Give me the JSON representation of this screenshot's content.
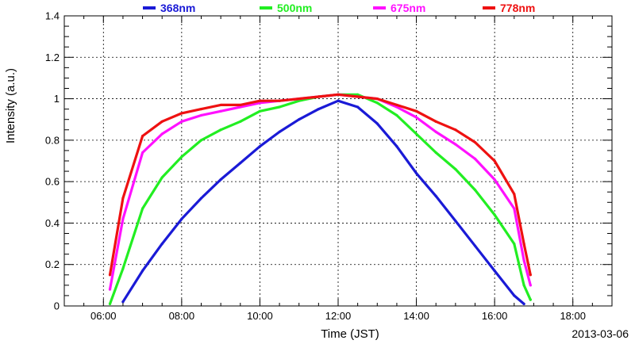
{
  "chart_data": {
    "type": "line",
    "xlabel": "Time (JST)",
    "ylabel": "Intensity (a.u.)",
    "date_label": "2013-03-06",
    "xlim": [
      "05:00",
      "19:00"
    ],
    "ylim": [
      0,
      1.4
    ],
    "x_ticks": [
      "06:00",
      "08:00",
      "10:00",
      "12:00",
      "14:00",
      "16:00",
      "18:00"
    ],
    "y_ticks": [
      "0",
      "0.2",
      "0.4",
      "0.6",
      "0.8",
      "1",
      "1.2",
      "1.4"
    ],
    "grid": true,
    "legend_position": "top",
    "x": [
      "06:10",
      "06:30",
      "07:00",
      "07:30",
      "08:00",
      "08:30",
      "09:00",
      "09:30",
      "10:00",
      "10:30",
      "11:00",
      "11:30",
      "12:00",
      "12:30",
      "13:00",
      "13:30",
      "14:00",
      "14:30",
      "15:00",
      "15:30",
      "16:00",
      "16:30",
      "16:45",
      "16:55"
    ],
    "series": [
      {
        "name": "368nm",
        "color": "#1a1ad6",
        "values": [
          null,
          0.02,
          0.17,
          0.3,
          0.42,
          0.52,
          0.61,
          0.69,
          0.77,
          0.84,
          0.9,
          0.95,
          0.99,
          0.96,
          0.88,
          0.77,
          0.64,
          0.53,
          0.41,
          0.29,
          0.17,
          0.05,
          0.01,
          null
        ]
      },
      {
        "name": "500nm",
        "color": "#22ee22",
        "values": [
          0.01,
          0.18,
          0.47,
          0.62,
          0.72,
          0.8,
          0.85,
          0.89,
          0.94,
          0.96,
          0.99,
          1.01,
          1.02,
          1.02,
          0.98,
          0.92,
          0.83,
          0.74,
          0.66,
          0.56,
          0.44,
          0.3,
          0.1,
          0.03
        ]
      },
      {
        "name": "675nm",
        "color": "#ff11ff",
        "values": [
          0.08,
          0.42,
          0.74,
          0.83,
          0.89,
          0.92,
          0.94,
          0.96,
          0.98,
          0.99,
          1.0,
          1.01,
          1.02,
          1.01,
          1.0,
          0.96,
          0.91,
          0.84,
          0.78,
          0.71,
          0.61,
          0.47,
          0.22,
          0.1
        ]
      },
      {
        "name": "778nm",
        "color": "#ee1111",
        "values": [
          0.15,
          0.52,
          0.82,
          0.89,
          0.93,
          0.95,
          0.97,
          0.97,
          0.99,
          0.99,
          1.0,
          1.01,
          1.02,
          1.01,
          1.0,
          0.97,
          0.94,
          0.89,
          0.85,
          0.79,
          0.7,
          0.54,
          0.3,
          0.15
        ]
      }
    ]
  }
}
